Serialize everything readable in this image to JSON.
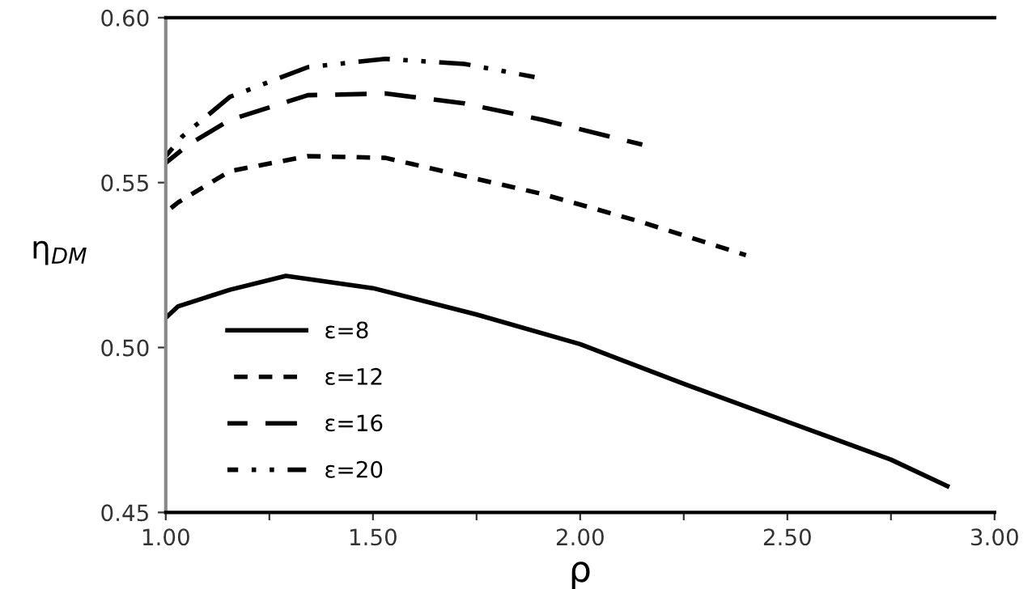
{
  "chart_data": {
    "type": "line",
    "xlabel": "ρ",
    "ylabel": "η$_{DM}$",
    "xlim": [
      1.0,
      3.0
    ],
    "ylim": [
      0.45,
      0.6
    ],
    "xticks": [
      {
        "value": 1.0,
        "label": "1.00"
      },
      {
        "value": 1.25,
        "label": null
      },
      {
        "value": 1.5,
        "label": "1.50"
      },
      {
        "value": 1.75,
        "label": null
      },
      {
        "value": 2.0,
        "label": "2.00"
      },
      {
        "value": 2.25,
        "label": null
      },
      {
        "value": 2.5,
        "label": "2.50"
      },
      {
        "value": 2.75,
        "label": null
      },
      {
        "value": 3.0,
        "label": "3.00"
      }
    ],
    "yticks": [
      {
        "value": 0.45,
        "label": "0.45"
      },
      {
        "value": 0.5,
        "label": "0.50"
      },
      {
        "value": 0.55,
        "label": "0.55"
      },
      {
        "value": 0.6,
        "label": "0.60"
      }
    ],
    "grid": false,
    "legend": "bottom left",
    "marker": "none",
    "series": [
      {
        "name": "ε=8",
        "color": "#000000",
        "line_style": "solid",
        "x": [
          1.0,
          1.03,
          1.155,
          1.29,
          1.5,
          1.75,
          2.0,
          2.25,
          2.5,
          2.75,
          2.886
        ],
        "values": [
          0.509,
          0.5125,
          0.5175,
          0.5217,
          0.518,
          0.51,
          0.501,
          0.489,
          0.4775,
          0.466,
          0.458
        ]
      },
      {
        "name": "ε=12",
        "color": "#000000",
        "line_style": "dashed",
        "x": [
          1.0,
          1.03,
          1.155,
          1.343,
          1.53,
          1.72,
          1.91,
          2.136,
          2.4
        ],
        "values": [
          0.541,
          0.544,
          0.5535,
          0.558,
          0.5575,
          0.552,
          0.5465,
          0.5385,
          0.528
        ]
      },
      {
        "name": "ε=16",
        "color": "#000000",
        "line_style": "longdash",
        "x": [
          1.0,
          1.055,
          1.155,
          1.343,
          1.53,
          1.72,
          1.91,
          2.15
        ],
        "values": [
          0.556,
          0.5615,
          0.569,
          0.5765,
          0.577,
          0.574,
          0.569,
          0.5615
        ]
      },
      {
        "name": "ε=20",
        "color": "#000000",
        "line_style": "dashdotdot",
        "x": [
          1.0,
          1.04,
          1.155,
          1.343,
          1.53,
          1.72,
          1.89
        ],
        "values": [
          0.558,
          0.564,
          0.576,
          0.585,
          0.5875,
          0.586,
          0.582
        ]
      }
    ]
  }
}
